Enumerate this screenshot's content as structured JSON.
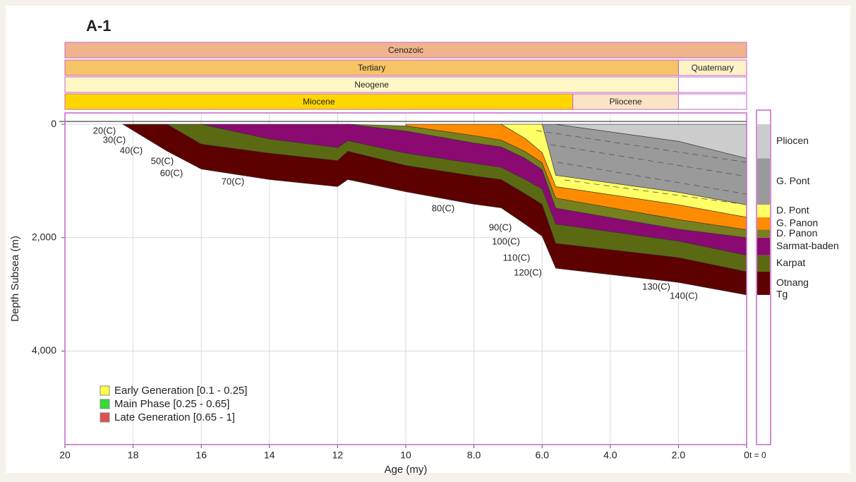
{
  "chart_data": {
    "type": "burial-history",
    "title": "A-1",
    "xlabel": "Age (my)",
    "ylabel": "Depth Subsea (m)",
    "xlim": [
      20,
      0
    ],
    "xticks": [
      20,
      18,
      16,
      14,
      12,
      10,
      {
        "value": 8,
        "label": "8.0"
      },
      {
        "value": 6,
        "label": "6.0"
      },
      {
        "value": 4,
        "label": "4.0"
      },
      {
        "value": 2,
        "label": "2.0"
      },
      0
    ],
    "ylim": [
      -200,
      5650
    ],
    "yticks": [
      0,
      {
        "value": 2000,
        "label": "2,000"
      },
      {
        "value": 4000,
        "label": "4,000"
      }
    ],
    "grid": true,
    "eras": [
      [
        {
          "name": "Cenozoic",
          "start": 20,
          "end": 0,
          "color": "#f0b48c"
        }
      ],
      [
        {
          "name": "Tertiary",
          "start": 20,
          "end": 2,
          "color": "#f6c466"
        },
        {
          "name": "Quaternary",
          "start": 2,
          "end": 0,
          "color": "#fdf3c6"
        }
      ],
      [
        {
          "name": "Neogene",
          "start": 20,
          "end": 2,
          "color": "#fff8c6"
        }
      ],
      [
        {
          "name": "Miocene",
          "start": 20,
          "end": 5.1,
          "color": "#ffd600"
        },
        {
          "name": "Pliocene",
          "start": 5.1,
          "end": 2,
          "color": "#fde3c6"
        }
      ]
    ],
    "x": [
      18.3,
      17,
      16,
      14,
      12,
      11.7,
      10,
      8,
      7.2,
      6.5,
      6,
      5.6,
      2,
      0
    ],
    "series": [
      {
        "name": "Otnang",
        "color": "#5c0000",
        "values": [
          0,
          475,
          790,
          975,
          1100,
          975,
          1190,
          1410,
          1475,
          1760,
          1975,
          2540,
          2790,
          3010
        ]
      },
      {
        "name": "Karpat",
        "color": "#5b6a12",
        "values": [
          null,
          0,
          350,
          510,
          640,
          475,
          725,
          910,
          975,
          1225,
          1410,
          2100,
          2350,
          2600
        ]
      },
      {
        "name": "Sarmat-baden",
        "color": "#8a0a72",
        "values": [
          null,
          null,
          0,
          260,
          410,
          290,
          510,
          690,
          760,
          975,
          1140,
          1760,
          2060,
          2310
        ]
      },
      {
        "name": "D. Panon",
        "color": "#76801e",
        "values": [
          null,
          null,
          null,
          null,
          null,
          0,
          120,
          330,
          400,
          600,
          800,
          1480,
          1850,
          2000
        ]
      },
      {
        "name": "G. Panon",
        "color": "#ff8c00",
        "values": [
          null,
          null,
          null,
          null,
          null,
          null,
          30,
          200,
          280,
          480,
          680,
          1300,
          1680,
          1860
        ]
      },
      {
        "name": "D. Pont",
        "color": "#ffff66",
        "values": [
          null,
          null,
          null,
          null,
          null,
          null,
          null,
          null,
          0,
          250,
          500,
          1100,
          1420,
          1640
        ]
      },
      {
        "name": "G. Pont",
        "color": "#9a9a9a",
        "values": [
          null,
          null,
          null,
          null,
          null,
          null,
          null,
          null,
          null,
          null,
          0,
          900,
          1200,
          1420
        ]
      },
      {
        "name": "Pliocen",
        "color": "#cccccc",
        "values": [
          null,
          null,
          null,
          null,
          null,
          null,
          null,
          null,
          null,
          null,
          null,
          0,
          300,
          600
        ]
      }
    ],
    "basement": "Tg",
    "column_label": "t = 0",
    "annotations": [
      "20(C)",
      "30(C)",
      "40(C)",
      "50(C)",
      "60(C)",
      "70(C)",
      "80(C)",
      "90(C)",
      "100(C)",
      "110(C)",
      "120(C)",
      "130(C)",
      "140(C)"
    ],
    "legend": [
      {
        "name": "Early Generation [0.1 - 0.25]",
        "color": "#ffff40"
      },
      {
        "name": "Main Phase [0.25 - 0.65]",
        "color": "#33dd33"
      },
      {
        "name": "Late Generation [0.65 - 1]",
        "color": "#e05050"
      }
    ]
  }
}
